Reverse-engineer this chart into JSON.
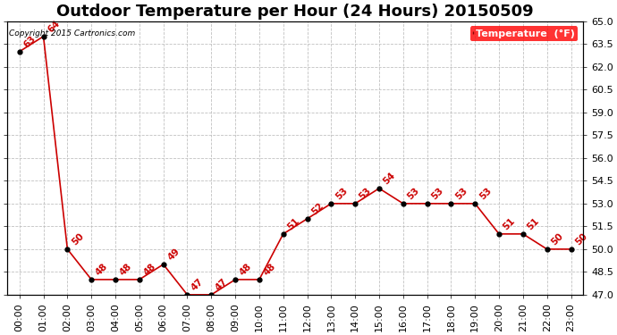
{
  "title": "Outdoor Temperature per Hour (24 Hours) 20150509",
  "copyright": "Copyright 2015 Cartronics.com",
  "legend_label": "Temperature  (°F)",
  "hours": [
    "00:00",
    "01:00",
    "02:00",
    "03:00",
    "04:00",
    "05:00",
    "06:00",
    "07:00",
    "08:00",
    "09:00",
    "10:00",
    "11:00",
    "12:00",
    "13:00",
    "14:00",
    "15:00",
    "16:00",
    "17:00",
    "18:00",
    "19:00",
    "20:00",
    "21:00",
    "22:00",
    "23:00"
  ],
  "values": [
    63,
    64,
    50,
    48,
    48,
    48,
    49,
    47,
    47,
    48,
    48,
    51,
    52,
    53,
    53,
    54,
    53,
    53,
    53,
    53,
    51,
    51,
    50,
    50
  ],
  "ylim": [
    47.0,
    65.0
  ],
  "yticks": [
    47.0,
    48.5,
    50.0,
    51.5,
    53.0,
    54.5,
    56.0,
    57.5,
    59.0,
    60.5,
    62.0,
    63.5,
    65.0
  ],
  "line_color": "#cc0000",
  "marker_color": "#000000",
  "bg_color": "#ffffff",
  "grid_color": "#bbbbbb",
  "label_color": "#cc0000",
  "title_fontsize": 13,
  "axis_fontsize": 8,
  "annotation_fontsize": 7.5
}
